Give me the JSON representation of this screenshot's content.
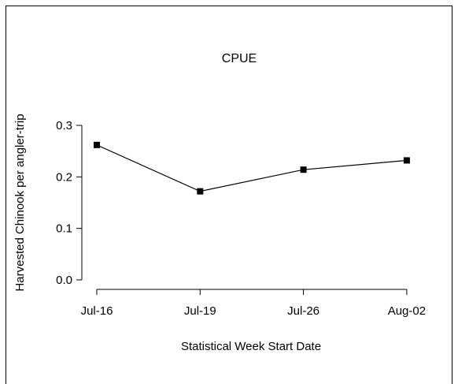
{
  "chart_data": {
    "type": "line",
    "title": "CPUE",
    "xlabel": "Statistical Week Start Date",
    "ylabel": "Harvested Chinook per angler-trip",
    "categories": [
      "Jul-16",
      "Jul-19",
      "Jul-26",
      "Aug-02"
    ],
    "series": [
      {
        "values": [
          0.262,
          0.172,
          0.214,
          0.232
        ]
      }
    ],
    "yticks": [
      "0.0",
      "0.1",
      "0.2",
      "0.3"
    ],
    "ylim": [
      0,
      0.3
    ],
    "grid": false,
    "legend": "none",
    "line_color": "#000000",
    "marker": "square"
  }
}
